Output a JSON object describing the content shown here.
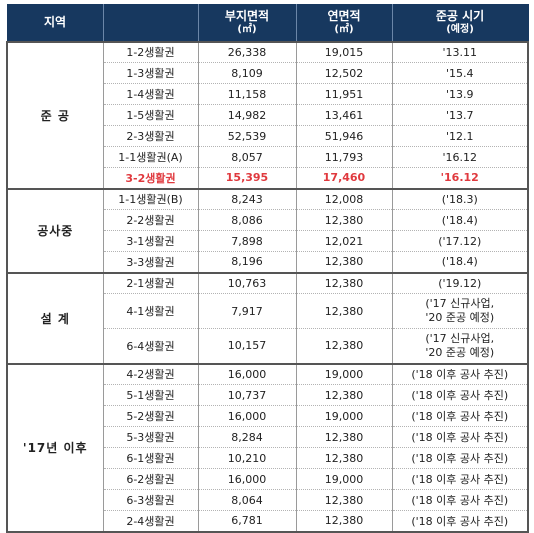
{
  "headers": {
    "region": "지역",
    "land_area": "부지면적",
    "land_area_unit": "(㎡)",
    "floor_area": "연면적",
    "floor_area_unit": "(㎡)",
    "completion": "준공 시기",
    "completion_sub": "(예정)"
  },
  "groups": [
    {
      "name": "준 공",
      "rows": [
        {
          "name": "1-2생활권",
          "land": "26,338",
          "floor": "19,015",
          "when": "'13.11"
        },
        {
          "name": "1-3생활권",
          "land": "8,109",
          "floor": "12,502",
          "when": "'15.4"
        },
        {
          "name": "1-4생활권",
          "land": "11,158",
          "floor": "11,951",
          "when": "'13.9"
        },
        {
          "name": "1-5생활권",
          "land": "14,982",
          "floor": "13,461",
          "when": "'13.7"
        },
        {
          "name": "2-3생활권",
          "land": "52,539",
          "floor": "51,946",
          "when": "'12.1"
        },
        {
          "name": "1-1생활권(A)",
          "land": "8,057",
          "floor": "11,793",
          "when": "'16.12"
        },
        {
          "name": "3-2생활권",
          "land": "15,395",
          "floor": "17,460",
          "when": "'16.12",
          "highlight": true
        }
      ]
    },
    {
      "name": "공사중",
      "rows": [
        {
          "name": "1-1생활권(B)",
          "land": "8,243",
          "floor": "12,008",
          "when": "('18.3)"
        },
        {
          "name": "2-2생활권",
          "land": "8,086",
          "floor": "12,380",
          "when": "('18.4)"
        },
        {
          "name": "3-1생활권",
          "land": "7,898",
          "floor": "12,021",
          "when": "('17.12)"
        },
        {
          "name": "3-3생활권",
          "land": "8,196",
          "floor": "12,380",
          "when": "('18.4)"
        }
      ]
    },
    {
      "name": "설 계",
      "rows": [
        {
          "name": "2-1생활권",
          "land": "10,763",
          "floor": "12,380",
          "when": "('19.12)"
        },
        {
          "name": "4-1생활권",
          "land": "7,917",
          "floor": "12,380",
          "when": "('17 신규사업,",
          "when2": "'20 준공 예정)"
        },
        {
          "name": "6-4생활권",
          "land": "10,157",
          "floor": "12,380",
          "when": "('17 신규사업,",
          "when2": "'20 준공 예정)"
        }
      ]
    },
    {
      "name": "'17년 이후",
      "rows": [
        {
          "name": "4-2생활권",
          "land": "16,000",
          "floor": "19,000",
          "when": "('18 이후 공사 추진)"
        },
        {
          "name": "5-1생활권",
          "land": "10,737",
          "floor": "12,380",
          "when": "('18 이후 공사 추진)"
        },
        {
          "name": "5-2생활권",
          "land": "16,000",
          "floor": "19,000",
          "when": "('18 이후 공사 추진)"
        },
        {
          "name": "5-3생활권",
          "land": "8,284",
          "floor": "12,380",
          "when": "('18 이후 공사 추진)"
        },
        {
          "name": "6-1생활권",
          "land": "10,210",
          "floor": "12,380",
          "when": "('18 이후 공사 추진)"
        },
        {
          "name": "6-2생활권",
          "land": "16,000",
          "floor": "19,000",
          "when": "('18 이후 공사 추진)"
        },
        {
          "name": "6-3생활권",
          "land": "8,064",
          "floor": "12,380",
          "when": "('18 이후 공사 추진)"
        },
        {
          "name": "2-4생활권",
          "land": "6,781",
          "floor": "12,380",
          "when": "('18 이후 공사 추진)"
        }
      ]
    }
  ]
}
